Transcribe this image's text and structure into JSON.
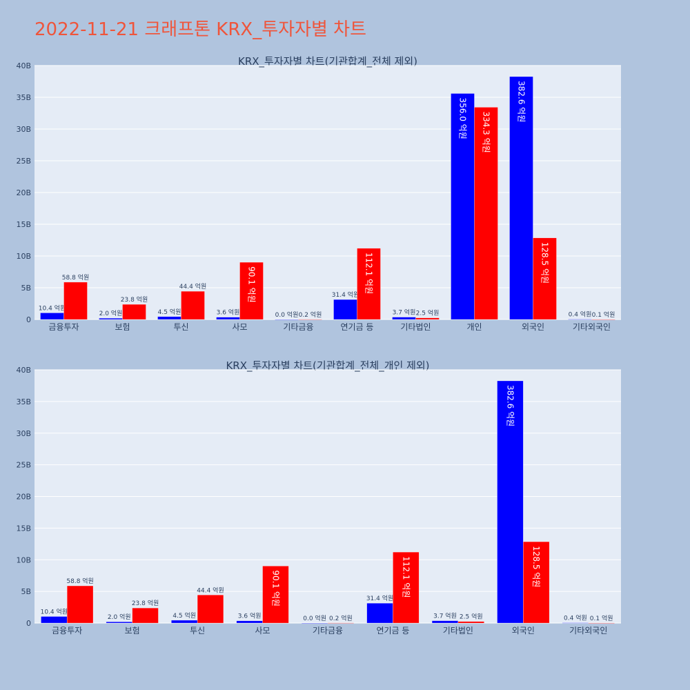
{
  "title": "2022-11-21 크래프톤 KRX_투자자별 차트",
  "colors": {
    "series1": "#0000FF",
    "series2": "#FF0000",
    "plot_bg": "#E5ECF6",
    "page_bg": "#B0C4DE",
    "title": "#EF553B"
  },
  "chart_data": [
    {
      "type": "bar",
      "title": "KRX_투자자별 차트(기관합계_전체 제외)",
      "categories": [
        "금융투자",
        "보험",
        "투신",
        "사모",
        "기타금융",
        "연기금 등",
        "기타법인",
        "개인",
        "외국인",
        "기타외국인"
      ],
      "series": [
        {
          "values": [
            1040000000,
            200000000,
            450000000,
            360000000,
            0,
            3140000000,
            370000000,
            35600000000,
            38260000000,
            40000000
          ],
          "labels": [
            "10.4 억원",
            "2.0 억원",
            "4.5 억원",
            "3.6 억원",
            "0.0 억원",
            "31.4 억원",
            "3.7 억원",
            "356.0 억원",
            "382.6 억원",
            "0.4 억원"
          ]
        },
        {
          "values": [
            5880000000,
            2380000000,
            4440000000,
            9010000000,
            20000000,
            11210000000,
            250000000,
            33430000000,
            12850000000,
            10000000
          ],
          "labels": [
            "58.8 억원",
            "23.8 억원",
            "44.4 억원",
            "90.1 억원",
            "0.2 억원",
            "112.1 억원",
            "2.5 억원",
            "334.3 억원",
            "128.5 억원",
            "0.1 억원"
          ]
        }
      ],
      "ylim": [
        0,
        40000000000
      ],
      "yticks": [
        0,
        5000000000,
        10000000000,
        15000000000,
        20000000000,
        25000000000,
        30000000000,
        35000000000,
        40000000000
      ],
      "ytick_labels": [
        "0",
        "5B",
        "10B",
        "15B",
        "20B",
        "25B",
        "30B",
        "35B",
        "40B"
      ],
      "grid": true,
      "legend": "none"
    },
    {
      "type": "bar",
      "title": "KRX_투자자별 차트(기관합계_전체_개인 제외)",
      "categories": [
        "금융투자",
        "보험",
        "투신",
        "사모",
        "기타금융",
        "연기금 등",
        "기타법인",
        "외국인",
        "기타외국인"
      ],
      "series": [
        {
          "values": [
            1040000000,
            200000000,
            450000000,
            360000000,
            0,
            3140000000,
            370000000,
            38260000000,
            40000000
          ],
          "labels": [
            "10.4 억원",
            "2.0 억원",
            "4.5 억원",
            "3.6 억원",
            "0.0 억원",
            "31.4 억원",
            "3.7 억원",
            "382.6 억원",
            "0.4 억원"
          ]
        },
        {
          "values": [
            5880000000,
            2380000000,
            4440000000,
            9010000000,
            20000000,
            11210000000,
            250000000,
            12850000000,
            10000000
          ],
          "labels": [
            "58.8 억원",
            "23.8 억원",
            "44.4 억원",
            "90.1 억원",
            "0.2 억원",
            "112.1 억원",
            "2.5 억원",
            "128.5 억원",
            "0.1 억원"
          ]
        }
      ],
      "ylim": [
        0,
        40000000000
      ],
      "yticks": [
        0,
        5000000000,
        10000000000,
        15000000000,
        20000000000,
        25000000000,
        30000000000,
        35000000000,
        40000000000
      ],
      "ytick_labels": [
        "0",
        "5B",
        "10B",
        "15B",
        "20B",
        "25B",
        "30B",
        "35B",
        "40B"
      ],
      "grid": true,
      "legend": "none"
    }
  ]
}
